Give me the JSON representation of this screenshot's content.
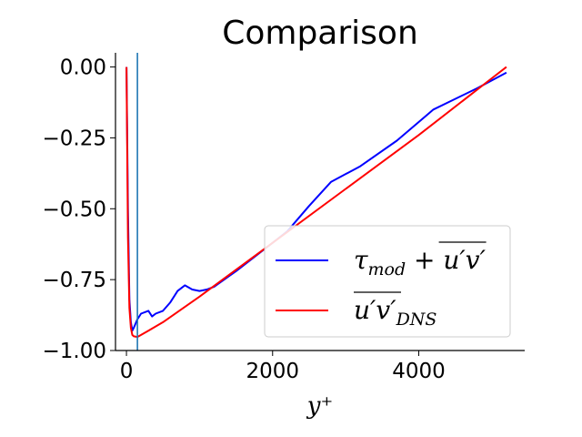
{
  "chart_data": {
    "type": "line",
    "title": "Comparison",
    "xlabel": "y⁺",
    "xlim": [
      -150,
      5450
    ],
    "ylim": [
      -1.0,
      0.05
    ],
    "xticks": [
      {
        "value": 0,
        "label": "0"
      },
      {
        "value": 2000,
        "label": "2000"
      },
      {
        "value": 4000,
        "label": "4000"
      }
    ],
    "yticks": [
      {
        "value": 0.0,
        "label": "0.00"
      },
      {
        "value": -0.25,
        "label": "−0.25"
      },
      {
        "value": -0.5,
        "label": "−0.50"
      },
      {
        "value": -0.75,
        "label": "−0.75"
      },
      {
        "value": -1.0,
        "label": "−1.00"
      }
    ],
    "vline": {
      "x": 150,
      "color": "#1f77b4"
    },
    "legend_position": "lower-right",
    "series": [
      {
        "key": "mod",
        "legend": {
          "base": "τ",
          "sub": "mod",
          "rest": "+ u′v′",
          "overline_part": "u′v′"
        },
        "color": "#0000ff",
        "x": [
          0,
          20,
          40,
          60,
          80,
          100,
          150,
          200,
          300,
          350,
          400,
          500,
          600,
          700,
          800,
          900,
          1000,
          1100,
          1200,
          1500,
          2000,
          2200,
          2500,
          2800,
          3200,
          3700,
          4200,
          4800,
          5200
        ],
        "y": [
          0.0,
          -0.5,
          -0.82,
          -0.9,
          -0.93,
          -0.92,
          -0.89,
          -0.87,
          -0.86,
          -0.88,
          -0.87,
          -0.86,
          -0.83,
          -0.79,
          -0.77,
          -0.785,
          -0.79,
          -0.785,
          -0.775,
          -0.72,
          -0.62,
          -0.58,
          -0.49,
          -0.405,
          -0.35,
          -0.26,
          -0.15,
          -0.075,
          -0.02
        ]
      },
      {
        "key": "dns",
        "legend": {
          "base": "u′v′",
          "sub": "DNS",
          "overline_part": "u′v′"
        },
        "color": "#ff0000",
        "x": [
          0,
          10,
          20,
          40,
          60,
          80,
          100,
          150,
          200,
          300,
          500,
          1000,
          2000,
          3000,
          4000,
          5000,
          5200
        ],
        "y": [
          0.0,
          -0.3,
          -0.6,
          -0.85,
          -0.92,
          -0.945,
          -0.95,
          -0.952,
          -0.945,
          -0.93,
          -0.9,
          -0.81,
          -0.62,
          -0.43,
          -0.24,
          -0.04,
          0.0
        ]
      }
    ]
  }
}
